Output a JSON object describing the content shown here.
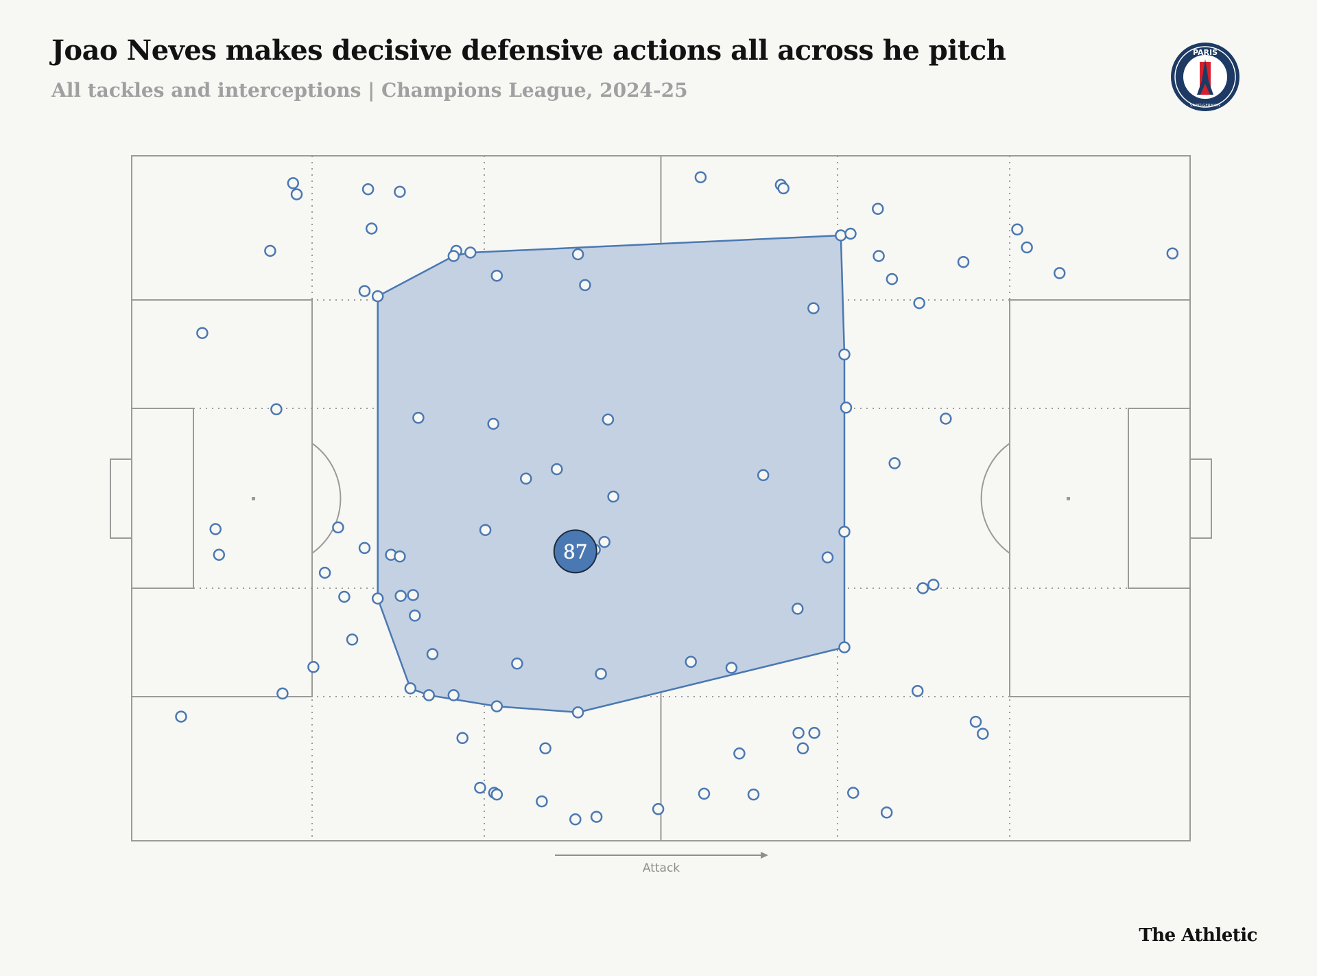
{
  "header": {
    "title": "Joao Neves makes decisive defensive actions all across he pitch",
    "subtitle": "All tackles and interceptions | Champions League, 2024-25"
  },
  "logo": {
    "icon": "psg-crest-icon",
    "top_text": "PARIS",
    "bottom_text": "SAINT-GERMAIN",
    "colors": {
      "navy": "#1c3a64",
      "red": "#d6202c"
    }
  },
  "footer": {
    "brand": "The Athletic"
  },
  "chart_data": {
    "type": "scatter",
    "title": "Joao Neves makes decisive defensive actions all across he pitch",
    "subtitle": "All tackles and interceptions | Champions League, 2024-25",
    "x_axis": {
      "range": [
        0,
        120
      ],
      "direction_label": "Attack"
    },
    "y_axis": {
      "range": [
        0,
        80
      ]
    },
    "grid": false,
    "colors": {
      "marker": "#4a78b2",
      "hull_fill": "#c4d1e2",
      "hull_stroke": "#4a78b2",
      "badge": "#4a78b2"
    },
    "average_position": {
      "x": 50.3,
      "y": 33.8,
      "label": "87"
    },
    "hull": [
      [
        27.9,
        63.6
      ],
      [
        36.5,
        68.3
      ],
      [
        38.4,
        68.7
      ],
      [
        80.4,
        70.7
      ],
      [
        80.8,
        56.8
      ],
      [
        80.8,
        22.6
      ],
      [
        50.6,
        15.0
      ],
      [
        41.4,
        15.7
      ],
      [
        33.7,
        17.0
      ],
      [
        31.6,
        17.8
      ],
      [
        27.9,
        28.3
      ]
    ],
    "points": [
      [
        18.3,
        76.8
      ],
      [
        18.7,
        75.5
      ],
      [
        26.8,
        76.1
      ],
      [
        30.4,
        75.8
      ],
      [
        27.2,
        71.5
      ],
      [
        15.7,
        68.9
      ],
      [
        36.8,
        68.9
      ],
      [
        50.6,
        68.5
      ],
      [
        64.5,
        77.5
      ],
      [
        73.6,
        76.6
      ],
      [
        73.9,
        76.2
      ],
      [
        84.6,
        73.8
      ],
      [
        84.7,
        68.3
      ],
      [
        100.4,
        71.4
      ],
      [
        101.5,
        69.3
      ],
      [
        118.0,
        68.6
      ],
      [
        89.3,
        62.8
      ],
      [
        77.3,
        62.2
      ],
      [
        8.0,
        59.3
      ],
      [
        16.4,
        50.4
      ],
      [
        38.4,
        68.7
      ],
      [
        36.5,
        68.3
      ],
      [
        33.7,
        17.0
      ],
      [
        80.4,
        70.7
      ],
      [
        81.5,
        70.9
      ],
      [
        27.9,
        63.6
      ],
      [
        26.4,
        64.2
      ],
      [
        32.5,
        49.4
      ],
      [
        41.4,
        66.0
      ],
      [
        51.4,
        64.9
      ],
      [
        54.0,
        49.2
      ],
      [
        81.0,
        50.6
      ],
      [
        86.2,
        65.6
      ],
      [
        94.3,
        67.6
      ],
      [
        92.3,
        49.3
      ],
      [
        105.2,
        66.3
      ],
      [
        41.0,
        48.7
      ],
      [
        48.2,
        43.4
      ],
      [
        44.7,
        42.3
      ],
      [
        71.6,
        42.7
      ],
      [
        86.5,
        44.1
      ],
      [
        80.8,
        56.8
      ],
      [
        54.6,
        40.2
      ],
      [
        9.5,
        36.4
      ],
      [
        9.9,
        33.4
      ],
      [
        23.4,
        36.6
      ],
      [
        26.4,
        34.2
      ],
      [
        29.4,
        33.4
      ],
      [
        30.4,
        33.2
      ],
      [
        40.1,
        36.3
      ],
      [
        53.6,
        34.9
      ],
      [
        52.5,
        34.0
      ],
      [
        80.8,
        36.1
      ],
      [
        78.9,
        33.1
      ],
      [
        21.9,
        31.3
      ],
      [
        24.1,
        28.5
      ],
      [
        27.9,
        28.3
      ],
      [
        30.5,
        28.6
      ],
      [
        31.9,
        28.7
      ],
      [
        32.1,
        26.3
      ],
      [
        89.7,
        29.5
      ],
      [
        90.9,
        29.9
      ],
      [
        75.5,
        27.1
      ],
      [
        25.0,
        23.5
      ],
      [
        34.1,
        21.8
      ],
      [
        43.7,
        20.7
      ],
      [
        53.2,
        19.5
      ],
      [
        63.4,
        20.9
      ],
      [
        68.0,
        20.2
      ],
      [
        80.8,
        22.6
      ],
      [
        20.6,
        20.3
      ],
      [
        31.6,
        17.8
      ],
      [
        17.1,
        17.2
      ],
      [
        36.5,
        17.0
      ],
      [
        41.4,
        15.7
      ],
      [
        50.6,
        15.0
      ],
      [
        89.1,
        17.5
      ],
      [
        5.6,
        14.5
      ],
      [
        95.7,
        13.9
      ],
      [
        96.5,
        12.5
      ],
      [
        37.5,
        12.0
      ],
      [
        46.9,
        10.8
      ],
      [
        75.6,
        12.6
      ],
      [
        77.4,
        12.6
      ],
      [
        76.1,
        10.8
      ],
      [
        68.9,
        10.2
      ],
      [
        39.5,
        6.2
      ],
      [
        41.1,
        5.6
      ],
      [
        41.4,
        5.4
      ],
      [
        46.5,
        4.6
      ],
      [
        52.7,
        2.8
      ],
      [
        59.7,
        3.7
      ],
      [
        64.9,
        5.5
      ],
      [
        70.5,
        5.4
      ],
      [
        81.8,
        5.6
      ],
      [
        85.6,
        3.3
      ],
      [
        50.3,
        2.5
      ]
    ]
  }
}
